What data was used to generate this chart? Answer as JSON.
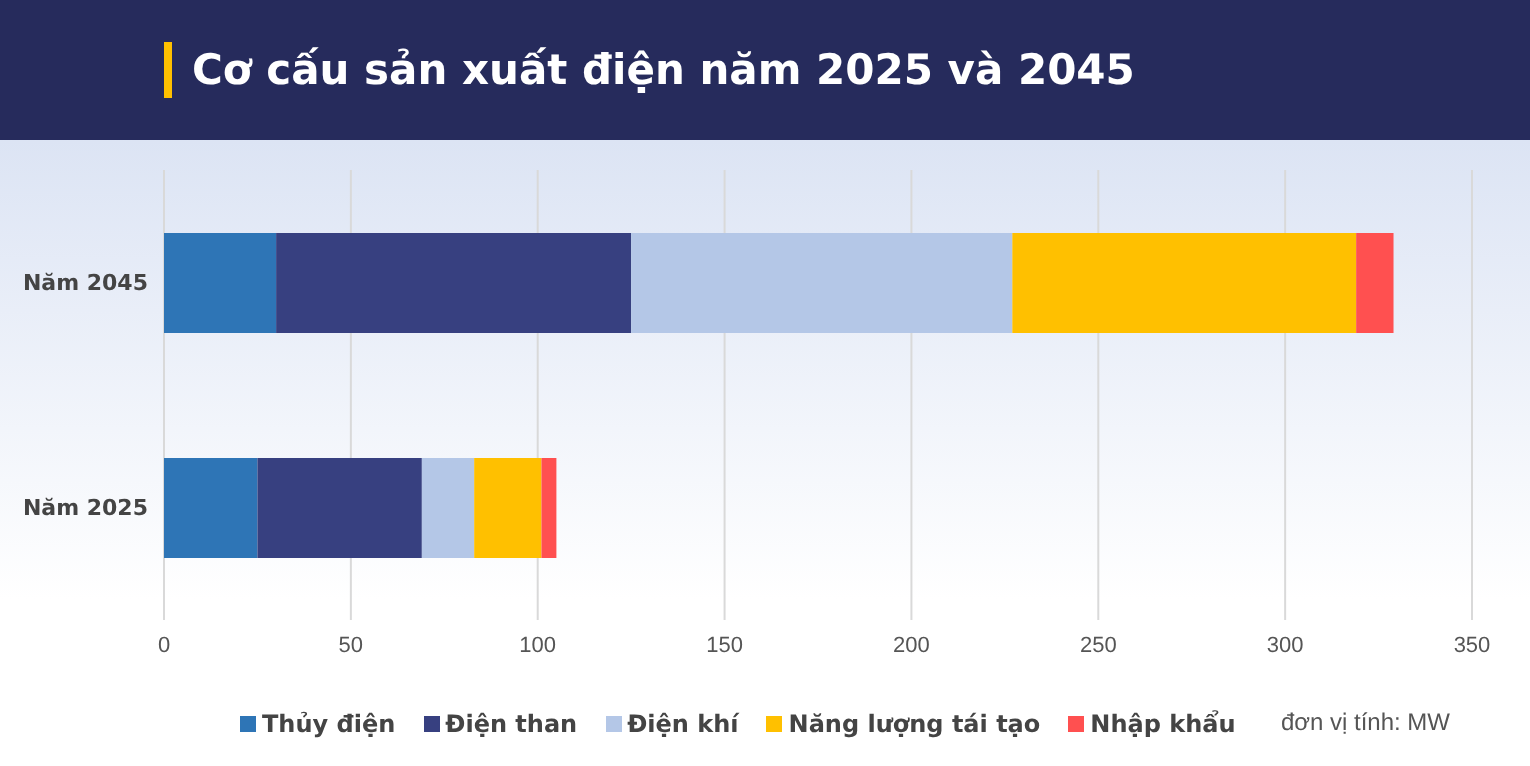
{
  "chart_data": {
    "type": "bar",
    "orientation": "horizontal",
    "stacked": true,
    "title": "Cơ cấu sản xuất điện năm 2025 và 2045",
    "categories": [
      "Năm 2045",
      "Năm 2025"
    ],
    "series": [
      {
        "name": "Thủy điện",
        "color": "#2e75b6",
        "values": [
          30,
          25
        ]
      },
      {
        "name": "Điện than",
        "color": "#374080",
        "values": [
          95,
          44
        ]
      },
      {
        "name": "Điện khí",
        "color": "#b4c7e7",
        "values": [
          102,
          14
        ]
      },
      {
        "name": "Năng lượng tái tạo",
        "color": "#ffc000",
        "values": [
          92,
          18
        ]
      },
      {
        "name": "Nhập khẩu",
        "color": "#ff5050",
        "values": [
          10,
          4
        ]
      }
    ],
    "xlim": [
      0,
      350
    ],
    "xticks": [
      0,
      50,
      100,
      150,
      200,
      250,
      300,
      350
    ],
    "grid": "x",
    "legend": "bottom",
    "annotations": [
      "đơn vị tính: MW"
    ]
  }
}
